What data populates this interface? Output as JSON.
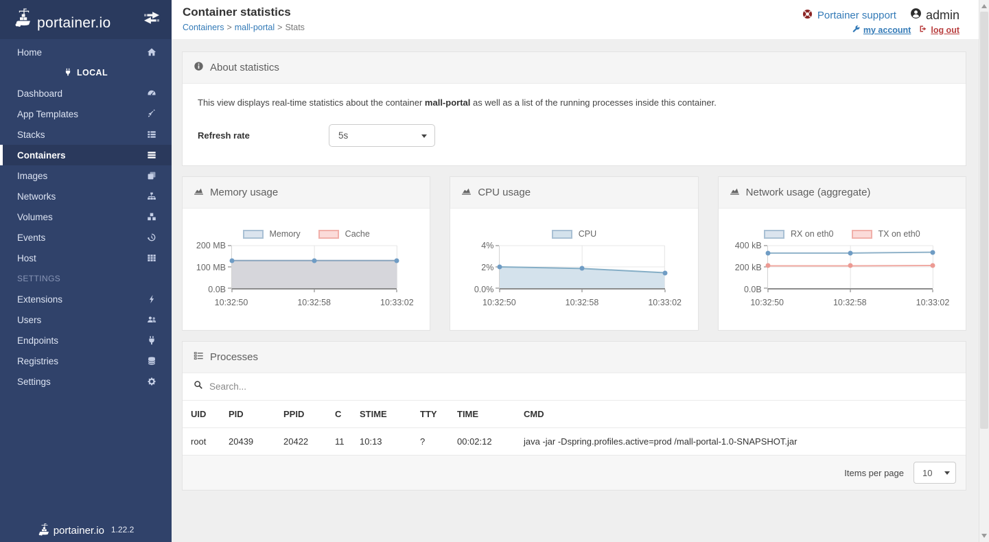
{
  "sidebar": {
    "logo_text": "portainer.io",
    "local_header": "LOCAL",
    "settings_header": "SETTINGS",
    "version": "1.22.2",
    "items": [
      {
        "label": "Home"
      },
      {
        "label": "Dashboard"
      },
      {
        "label": "App Templates"
      },
      {
        "label": "Stacks"
      },
      {
        "label": "Containers"
      },
      {
        "label": "Images"
      },
      {
        "label": "Networks"
      },
      {
        "label": "Volumes"
      },
      {
        "label": "Events"
      },
      {
        "label": "Host"
      },
      {
        "label": "Extensions"
      },
      {
        "label": "Users"
      },
      {
        "label": "Endpoints"
      },
      {
        "label": "Registries"
      },
      {
        "label": "Settings"
      }
    ]
  },
  "header": {
    "title": "Container statistics",
    "breadcrumb": [
      "Containers",
      "mall-portal",
      "Stats"
    ],
    "breadcrumb_separator": ">",
    "support_label": "Portainer support",
    "username": "admin",
    "my_account_label": "my account",
    "logout_label": "log out"
  },
  "about": {
    "title": "About statistics",
    "description_prefix": "This view displays real-time statistics about the container ",
    "container_name": "mall-portal",
    "description_suffix": " as well as a list of the running processes inside this container.",
    "refresh_rate_label": "Refresh rate",
    "refresh_rate_value": "5s"
  },
  "chart_data": [
    {
      "type": "line",
      "title": "Memory usage",
      "x": [
        "10:32:50",
        "10:32:58",
        "10:33:02"
      ],
      "ylim": [
        0,
        200
      ],
      "y_unit": "MB",
      "y_ticks": [
        {
          "label": "200 MB",
          "value": 200
        },
        {
          "label": "100 MB",
          "value": 100
        },
        {
          "label": "0.0B",
          "value": 0
        }
      ],
      "legend_position": "top",
      "grid": true,
      "series": [
        {
          "name": "Memory",
          "values": [
            130,
            130,
            130
          ],
          "area": true,
          "draw": true,
          "line": "#8aa4bd",
          "fill": "#d6d6db",
          "point": "#6f9cc4",
          "legend_fill": "#dbe4ee",
          "legend_border": "#a9c0d4"
        },
        {
          "name": "Cache",
          "values": [
            0,
            0,
            0
          ],
          "area": false,
          "draw": false,
          "line": "#f0a9a2",
          "fill": "#fbdbd9",
          "point": "#ec9a93",
          "legend_fill": "#fbdbd9",
          "legend_border": "#f1b0aa"
        }
      ]
    },
    {
      "type": "line",
      "title": "CPU usage",
      "x": [
        "10:32:50",
        "10:32:58",
        "10:33:02"
      ],
      "ylim": [
        0,
        4
      ],
      "y_unit": "%",
      "y_ticks": [
        {
          "label": "4%",
          "value": 4
        },
        {
          "label": "2%",
          "value": 2
        },
        {
          "label": "0.0%",
          "value": 0
        }
      ],
      "legend_position": "top",
      "grid": true,
      "series": [
        {
          "name": "CPU",
          "values": [
            2.0,
            1.85,
            1.45
          ],
          "area": true,
          "draw": true,
          "line": "#85aec6",
          "fill": "#d4e2ec",
          "point": "#6f9cc4",
          "legend_fill": "#d4e2ec",
          "legend_border": "#a9c0d4"
        }
      ]
    },
    {
      "type": "line",
      "title": "Network usage (aggregate)",
      "x": [
        "10:32:50",
        "10:32:58",
        "10:33:02"
      ],
      "ylim": [
        0,
        400
      ],
      "y_unit": "kB",
      "y_ticks": [
        {
          "label": "400 kB",
          "value": 400
        },
        {
          "label": "200 kB",
          "value": 200
        },
        {
          "label": "0.0B",
          "value": 0
        }
      ],
      "legend_position": "top",
      "grid": true,
      "series": [
        {
          "name": "RX on eth0",
          "values": [
            330,
            330,
            338
          ],
          "area": false,
          "draw": true,
          "line": "#8fb2c9",
          "fill": "none",
          "point": "#6f9cc4",
          "legend_fill": "#dbe4ee",
          "legend_border": "#a9c0d4"
        },
        {
          "name": "TX on eth0",
          "values": [
            210,
            210,
            213
          ],
          "area": false,
          "draw": true,
          "line": "#f0a9a2",
          "fill": "none",
          "point": "#ec9a93",
          "legend_fill": "#fbdbd9",
          "legend_border": "#f1b0aa"
        }
      ]
    }
  ],
  "processes": {
    "title": "Processes",
    "search_placeholder": "Search...",
    "columns": [
      "UID",
      "PID",
      "PPID",
      "C",
      "STIME",
      "TTY",
      "TIME",
      "CMD"
    ],
    "rows": [
      [
        "root",
        "20439",
        "20422",
        "11",
        "10:13",
        "?",
        "00:02:12",
        "java -jar -Dspring.profiles.active=prod /mall-portal-1.0-SNAPSHOT.jar"
      ]
    ],
    "items_per_page_label": "Items per page",
    "items_per_page_value": "10"
  }
}
